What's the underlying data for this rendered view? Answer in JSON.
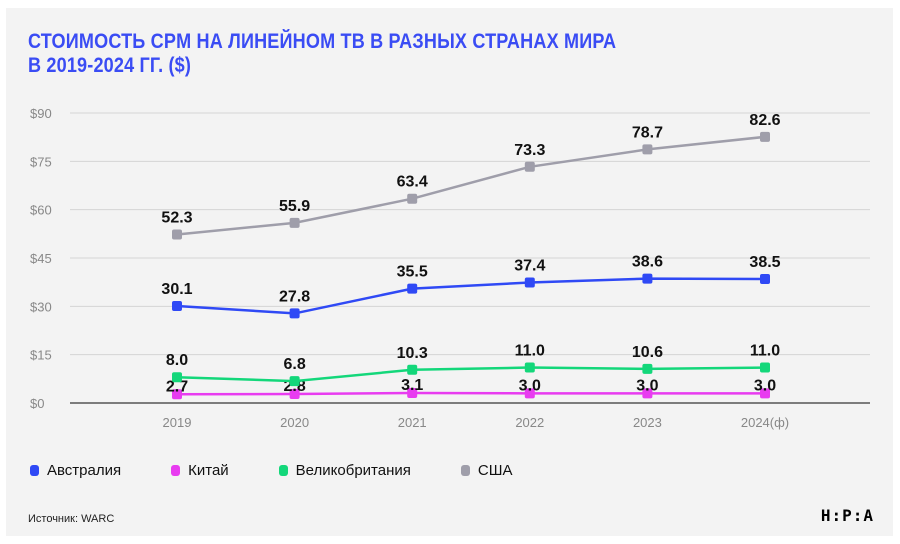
{
  "title_line1": "СТОИМОСТЬ CPM НА ЛИНЕЙНОМ ТВ В РАЗНЫХ СТРАНАХ МИРА",
  "title_line2": "В 2019-2024 ГГ. ($)",
  "source": "Источник: WARC",
  "logo": "H:P:A",
  "chart_data": {
    "type": "line",
    "title": "СТОИМОСТЬ CPM НА ЛИНЕЙНОМ ТВ В РАЗНЫХ СТРАНАХ МИРА В 2019-2024 ГГ. ($)",
    "categories": [
      "2019",
      "2020",
      "2021",
      "2022",
      "2023",
      "2024(ф)"
    ],
    "yticks": [
      "$0",
      "$15",
      "$30",
      "$45",
      "$60",
      "$75",
      "$90"
    ],
    "ylim": [
      0,
      90
    ],
    "grid": true,
    "legend_position": "bottom-left",
    "series": [
      {
        "name": "Австралия",
        "color": "#2f49f5",
        "values": [
          30.1,
          27.8,
          35.5,
          37.4,
          38.6,
          38.5
        ],
        "labels": [
          "30.1",
          "27.8",
          "35.5",
          "37.4",
          "38.6",
          "38.5"
        ]
      },
      {
        "name": "Китай",
        "color": "#e83cf0",
        "values": [
          2.7,
          2.8,
          3.1,
          3.0,
          3.0,
          3.0
        ],
        "labels": [
          "2.7",
          "2.8",
          "3.1",
          "3.0",
          "3.0",
          "3.0"
        ]
      },
      {
        "name": "Великобритания",
        "color": "#13d77a",
        "values": [
          8.0,
          6.8,
          10.3,
          11.0,
          10.6,
          11.0
        ],
        "labels": [
          "8.0",
          "6.8",
          "10.3",
          "11.0",
          "10.6",
          "11.0"
        ]
      },
      {
        "name": "США",
        "color": "#9f9eaa",
        "values": [
          52.3,
          55.9,
          63.4,
          73.3,
          78.7,
          82.6
        ],
        "labels": [
          "52.3",
          "55.9",
          "63.4",
          "73.3",
          "78.7",
          "82.6"
        ]
      }
    ]
  }
}
